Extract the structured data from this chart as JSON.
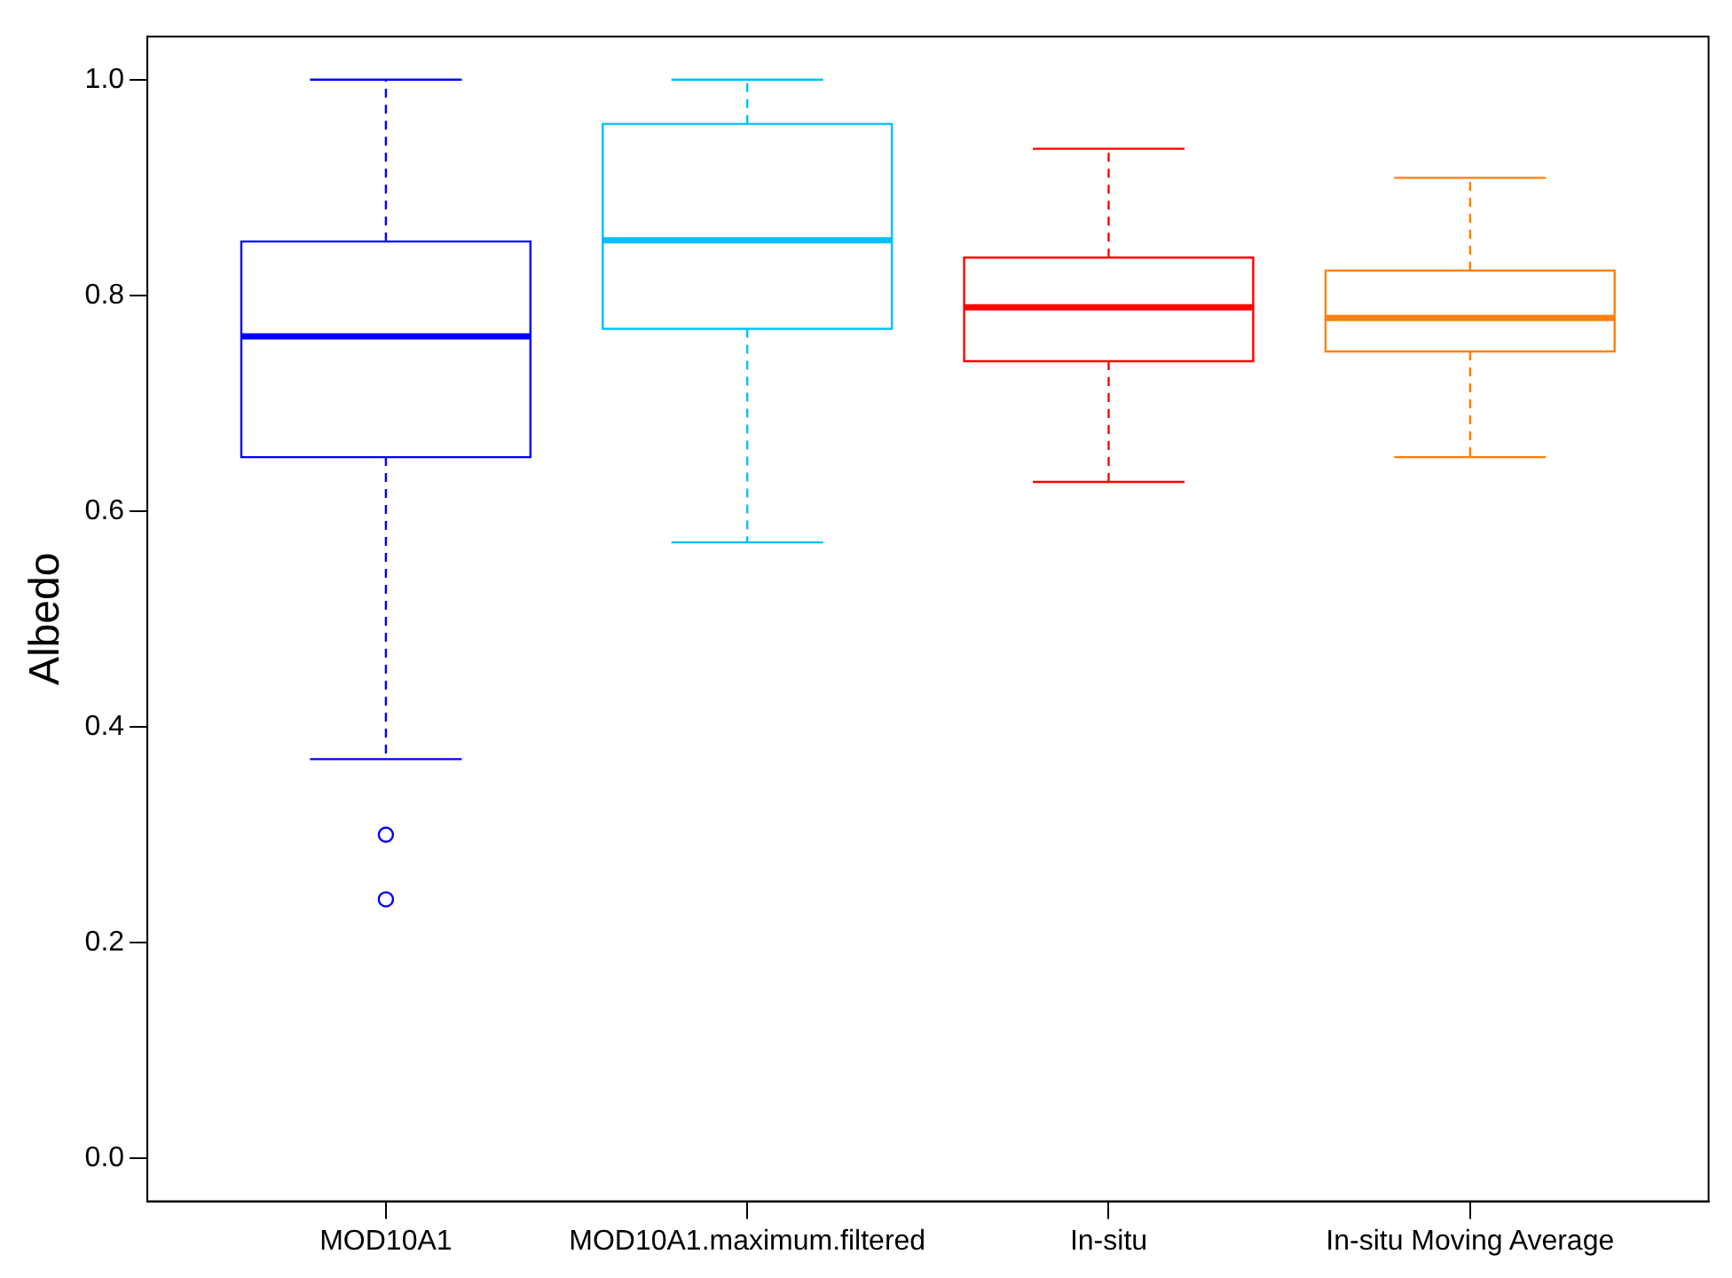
{
  "chart_data": {
    "type": "box",
    "ylabel": "Albedo",
    "categories": [
      "MOD10A1",
      "MOD10A1.maximum.filtered",
      "In-situ",
      "In-situ Moving Average"
    ],
    "boxes": [
      {
        "low": 0.37,
        "q1": 0.65,
        "median": 0.762,
        "q3": 0.85,
        "high": 1.0,
        "outliers": [
          0.3,
          0.24
        ]
      },
      {
        "low": 0.571,
        "q1": 0.769,
        "median": 0.851,
        "q3": 0.959,
        "high": 1.0
      },
      {
        "low": 0.627,
        "q1": 0.739,
        "median": 0.789,
        "q3": 0.835,
        "high": 0.936
      },
      {
        "low": 0.65,
        "q1": 0.748,
        "median": 0.779,
        "q3": 0.823,
        "high": 0.909
      }
    ],
    "colors": [
      "#0000ff",
      "#00bfff",
      "#ff0000",
      "#ff7f0e"
    ],
    "ylim": [
      -0.04,
      1.04
    ],
    "yticks": [
      {
        "value": 0,
        "label": "0.0"
      },
      {
        "value": 0.2,
        "label": "0.2"
      },
      {
        "value": 0.4,
        "label": "0.4"
      },
      {
        "value": 0.6,
        "label": "0.6"
      },
      {
        "value": 0.8,
        "label": "0.8"
      },
      {
        "value": 1,
        "label": "1.0"
      }
    ],
    "grid": false,
    "legend": false,
    "line_style": "dashed"
  }
}
